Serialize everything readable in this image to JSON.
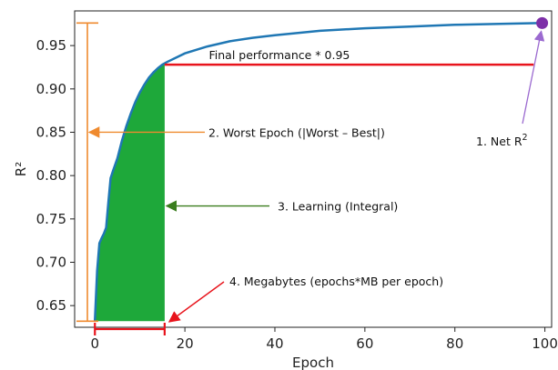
{
  "chart_data": {
    "type": "line",
    "xlabel": "Epoch",
    "ylabel": "R²",
    "xlim": [
      -4.5,
      101.5
    ],
    "ylim": [
      0.625,
      0.99
    ],
    "x_ticks": [
      0,
      20,
      40,
      60,
      80,
      100
    ],
    "y_ticks": [
      0.65,
      0.7,
      0.75,
      0.8,
      0.85,
      0.9,
      0.95
    ],
    "x_tick_labels": [
      "0",
      "20",
      "40",
      "60",
      "80",
      "100"
    ],
    "y_tick_labels": [
      "0.65",
      "0.70",
      "0.75",
      "0.80",
      "0.85",
      "0.90",
      "0.95"
    ],
    "grid": false,
    "colors": {
      "curve": "#1f77b4",
      "fill": "#1ea83a",
      "final_line": "#e8141c",
      "worst_bracket": "#ef8a2e",
      "learning_arrow": "#3a7d1e",
      "megabytes": "#e8141c",
      "net_marker": "#7d2fa8"
    },
    "series": [
      {
        "x": [
          0,
          0.5,
          1,
          1.5,
          2,
          2.5,
          3,
          3.5,
          4,
          5,
          6,
          7,
          8,
          9,
          10,
          11,
          12,
          13,
          14,
          15,
          16,
          18,
          20,
          25,
          30,
          35,
          40,
          50,
          60,
          70,
          80,
          90,
          100
        ],
        "y": [
          0.632,
          0.69,
          0.722,
          0.728,
          0.733,
          0.74,
          0.77,
          0.797,
          0.805,
          0.82,
          0.84,
          0.857,
          0.872,
          0.885,
          0.896,
          0.905,
          0.913,
          0.919,
          0.924,
          0.928,
          0.931,
          0.936,
          0.941,
          0.949,
          0.955,
          0.959,
          0.962,
          0.967,
          0.97,
          0.972,
          0.974,
          0.975,
          0.976
        ]
      }
    ],
    "fill_region": {
      "x_start": 0,
      "x_end": 15.5,
      "baseline": 0.632
    },
    "final_performance_level": 0.928,
    "worst_range": [
      0.632,
      0.976
    ],
    "megabytes_range": [
      0,
      15.5
    ],
    "net_point": {
      "x": 100,
      "y": 0.976
    },
    "annotations": {
      "final_performance": "Final performance * 0.95",
      "net": "1. Net R",
      "net_sup": "2",
      "worst_epoch": "2. Worst Epoch (|Worst – Best|)",
      "learning": "3. Learning (Integral)",
      "megabytes": "4. Megabytes (epochs*MB per epoch)"
    }
  }
}
